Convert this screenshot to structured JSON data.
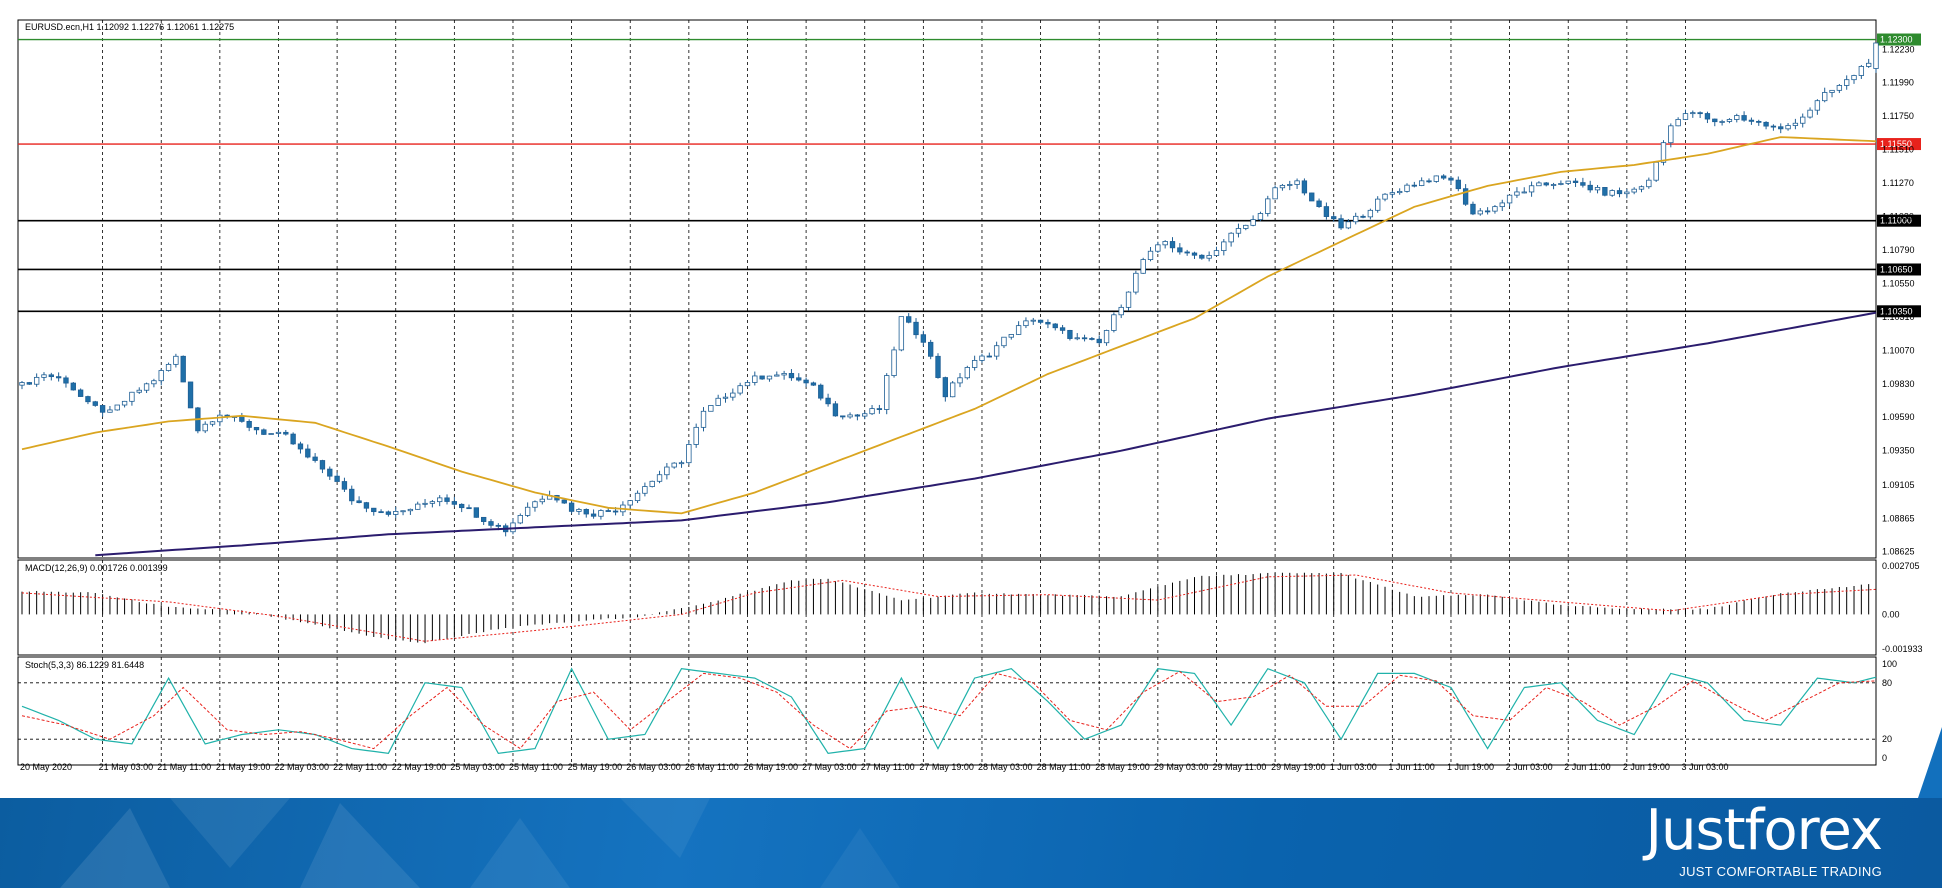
{
  "header": {
    "main": "EURUSD.ecn,H1  1.12092 1.12276 1.12061 1.12275",
    "macd": "MACD(12,26,9) 0.001726 0.001399",
    "stoch": "Stoch(5,3,3) 86.1229 81.6448"
  },
  "branding": {
    "logo": "Justforex",
    "tagline": "JUST COMFORTABLE TRADING"
  },
  "colors": {
    "bull_body": "#ffffff",
    "bear_body": "#1f6fa8",
    "candle_outline": "#1f5f95",
    "ma_fast": "#daa520",
    "ma_slow": "#2b1c6e",
    "level_green": "#2e8b2e",
    "level_red": "#e8221c",
    "level_black": "#000000",
    "stoch_main": "#20b2aa",
    "stoch_signal": "#e8221c",
    "macd_signal": "#e8221c"
  },
  "chart_data": [
    {
      "type": "candlestick",
      "symbol": "EURUSD.ecn",
      "timeframe": "H1",
      "last_ohlc": {
        "open": 1.12092,
        "high": 1.12276,
        "low": 1.12061,
        "close": 1.12275
      },
      "ylim": [
        1.0858,
        1.1244
      ],
      "y_ticks": [
        "1.12230",
        "1.11990",
        "1.11750",
        "1.11510",
        "1.11270",
        "1.11030",
        "1.10790",
        "1.10550",
        "1.10310",
        "1.10070",
        "1.09830",
        "1.09590",
        "1.09350",
        "1.09105",
        "1.08865",
        "1.08625"
      ],
      "x_ticks": [
        "20 May 2020",
        "21 May 03:00",
        "21 May 11:00",
        "21 May 19:00",
        "22 May 03:00",
        "22 May 11:00",
        "22 May 19:00",
        "25 May 03:00",
        "25 May 11:00",
        "25 May 19:00",
        "26 May 03:00",
        "26 May 11:00",
        "26 May 19:00",
        "27 May 03:00",
        "27 May 11:00",
        "27 May 19:00",
        "28 May 03:00",
        "28 May 11:00",
        "28 May 19:00",
        "29 May 03:00",
        "29 May 11:00",
        "29 May 19:00",
        "1 Jun 03:00",
        "1 Jun 11:00",
        "1 Jun 19:00",
        "2 Jun 03:00",
        "2 Jun 11:00",
        "2 Jun 19:00",
        "3 Jun 03:00"
      ],
      "levels": [
        {
          "price": 1.123,
          "label": "1.12300",
          "color": "green"
        },
        {
          "price": 1.1155,
          "label": "1.11550",
          "color": "red"
        },
        {
          "price": 1.11,
          "label": "1.11000",
          "color": "black"
        },
        {
          "price": 1.1065,
          "label": "1.10650",
          "color": "black"
        },
        {
          "price": 1.1035,
          "label": "1.10350",
          "color": "black"
        }
      ],
      "close_anchors": [
        [
          0,
          1.0982
        ],
        [
          3,
          1.099
        ],
        [
          6,
          1.0985
        ],
        [
          9,
          1.0968
        ],
        [
          12,
          1.0962
        ],
        [
          15,
          1.0975
        ],
        [
          18,
          1.0986
        ],
        [
          21,
          1.1002
        ],
        [
          24,
          1.095
        ],
        [
          27,
          1.0962
        ],
        [
          30,
          1.0955
        ],
        [
          33,
          1.0948
        ],
        [
          36,
          1.0945
        ],
        [
          39,
          1.093
        ],
        [
          42,
          1.0918
        ],
        [
          45,
          1.09
        ],
        [
          48,
          1.0893
        ],
        [
          51,
          1.089
        ],
        [
          54,
          1.0895
        ],
        [
          57,
          1.0902
        ],
        [
          60,
          1.0896
        ],
        [
          63,
          1.0886
        ],
        [
          66,
          1.0878
        ],
        [
          69,
          1.0895
        ],
        [
          72,
          1.0905
        ],
        [
          75,
          1.0893
        ],
        [
          78,
          1.089
        ],
        [
          81,
          1.0893
        ],
        [
          84,
          1.0905
        ],
        [
          87,
          1.0918
        ],
        [
          90,
          1.0928
        ],
        [
          93,
          1.0962
        ],
        [
          96,
          1.0975
        ],
        [
          99,
          1.0985
        ],
        [
          102,
          1.099
        ],
        [
          105,
          1.0988
        ],
        [
          108,
          1.098
        ],
        [
          111,
          1.0962
        ],
        [
          114,
          1.096
        ],
        [
          117,
          1.0965
        ],
        [
          120,
          1.103
        ],
        [
          123,
          1.1015
        ],
        [
          126,
          1.0975
        ],
        [
          129,
          1.0995
        ],
        [
          132,
          1.1005
        ],
        [
          135,
          1.102
        ],
        [
          138,
          1.103
        ],
        [
          141,
          1.1022
        ],
        [
          144,
          1.1015
        ],
        [
          147,
          1.1012
        ],
        [
          150,
          1.104
        ],
        [
          153,
          1.1072
        ],
        [
          156,
          1.1085
        ],
        [
          159,
          1.1075
        ],
        [
          162,
          1.1075
        ],
        [
          165,
          1.109
        ],
        [
          168,
          1.11
        ],
        [
          171,
          1.1122
        ],
        [
          174,
          1.1128
        ],
        [
          177,
          1.1108
        ],
        [
          180,
          1.1095
        ],
        [
          183,
          1.1105
        ],
        [
          186,
          1.1118
        ],
        [
          189,
          1.1125
        ],
        [
          192,
          1.113
        ],
        [
          195,
          1.113
        ],
        [
          198,
          1.1105
        ],
        [
          201,
          1.111
        ],
        [
          204,
          1.112
        ],
        [
          207,
          1.1125
        ],
        [
          210,
          1.1128
        ],
        [
          213,
          1.1125
        ],
        [
          216,
          1.112
        ],
        [
          219,
          1.112
        ],
        [
          222,
          1.1128
        ],
        [
          225,
          1.117
        ],
        [
          228,
          1.1178
        ],
        [
          231,
          1.117
        ],
        [
          234,
          1.1175
        ],
        [
          237,
          1.117
        ],
        [
          240,
          1.1165
        ],
        [
          243,
          1.1175
        ],
        [
          246,
          1.119
        ],
        [
          249,
          1.12
        ],
        [
          252,
          1.1215
        ],
        [
          253,
          1.12275
        ]
      ],
      "ma_fast_anchors": [
        [
          0,
          1.0936
        ],
        [
          10,
          1.0948
        ],
        [
          20,
          1.0956
        ],
        [
          30,
          1.096
        ],
        [
          40,
          1.0955
        ],
        [
          50,
          1.0938
        ],
        [
          60,
          1.092
        ],
        [
          70,
          1.0905
        ],
        [
          80,
          1.0894
        ],
        [
          90,
          1.089
        ],
        [
          100,
          1.0905
        ],
        [
          110,
          1.0925
        ],
        [
          120,
          1.0945
        ],
        [
          130,
          1.0965
        ],
        [
          140,
          1.099
        ],
        [
          150,
          1.101
        ],
        [
          160,
          1.103
        ],
        [
          170,
          1.106
        ],
        [
          180,
          1.1085
        ],
        [
          190,
          1.111
        ],
        [
          200,
          1.1125
        ],
        [
          210,
          1.1135
        ],
        [
          220,
          1.114
        ],
        [
          230,
          1.1148
        ],
        [
          240,
          1.116
        ],
        [
          253,
          1.1157
        ]
      ],
      "ma_slow_anchors": [
        [
          10,
          1.086
        ],
        [
          30,
          1.0867
        ],
        [
          50,
          1.0875
        ],
        [
          70,
          1.088
        ],
        [
          90,
          1.0885
        ],
        [
          110,
          1.0898
        ],
        [
          130,
          1.0915
        ],
        [
          150,
          1.0935
        ],
        [
          170,
          1.0958
        ],
        [
          190,
          1.0975
        ],
        [
          210,
          1.0995
        ],
        [
          230,
          1.1012
        ],
        [
          253,
          1.1034
        ]
      ]
    },
    {
      "type": "histogram",
      "name": "MACD(12,26,9)",
      "values_shown": {
        "main": 0.001726,
        "signal": 0.001399
      },
      "ylim": [
        -0.001933,
        0.002705
      ],
      "y_ticks": [
        "0.002705",
        "0.00",
        "-0.001933"
      ],
      "main_anchors": [
        [
          0,
          0.0013
        ],
        [
          10,
          0.0012
        ],
        [
          20,
          0.0004
        ],
        [
          30,
          0.0002
        ],
        [
          40,
          -0.0006
        ],
        [
          50,
          -0.0014
        ],
        [
          55,
          -0.0016
        ],
        [
          65,
          -0.0008
        ],
        [
          75,
          -0.0004
        ],
        [
          85,
          -0.0001
        ],
        [
          95,
          0.0008
        ],
        [
          105,
          0.0019
        ],
        [
          110,
          0.002
        ],
        [
          120,
          0.0008
        ],
        [
          130,
          0.0012
        ],
        [
          140,
          0.0011
        ],
        [
          150,
          0.001
        ],
        [
          160,
          0.0021
        ],
        [
          170,
          0.0023
        ],
        [
          180,
          0.0023
        ],
        [
          190,
          0.001
        ],
        [
          200,
          0.0011
        ],
        [
          210,
          0.0005
        ],
        [
          220,
          0.0003
        ],
        [
          230,
          0.0003
        ],
        [
          240,
          0.0012
        ],
        [
          253,
          0.0017
        ]
      ],
      "signal_anchors": [
        [
          0,
          0.0012
        ],
        [
          20,
          0.0007
        ],
        [
          35,
          -0.0001
        ],
        [
          55,
          -0.0015
        ],
        [
          70,
          -0.0009
        ],
        [
          90,
          0.0
        ],
        [
          100,
          0.0012
        ],
        [
          112,
          0.0019
        ],
        [
          125,
          0.001
        ],
        [
          140,
          0.0011
        ],
        [
          155,
          0.0008
        ],
        [
          170,
          0.0021
        ],
        [
          182,
          0.0022
        ],
        [
          195,
          0.0012
        ],
        [
          210,
          0.0007
        ],
        [
          225,
          0.0002
        ],
        [
          240,
          0.0011
        ],
        [
          253,
          0.0014
        ]
      ]
    },
    {
      "type": "line",
      "name": "Stoch(5,3,3)",
      "values_shown": {
        "main": 86.1229,
        "signal": 81.6448
      },
      "ylim": [
        0,
        100
      ],
      "y_ticks": [
        "100",
        "80",
        "20",
        "0"
      ],
      "levels": [
        80,
        20
      ],
      "main_anchors": [
        [
          0,
          55
        ],
        [
          5,
          40
        ],
        [
          10,
          20
        ],
        [
          15,
          15
        ],
        [
          20,
          85
        ],
        [
          25,
          15
        ],
        [
          30,
          25
        ],
        [
          35,
          30
        ],
        [
          40,
          25
        ],
        [
          45,
          10
        ],
        [
          50,
          5
        ],
        [
          55,
          80
        ],
        [
          60,
          75
        ],
        [
          65,
          5
        ],
        [
          70,
          10
        ],
        [
          75,
          95
        ],
        [
          80,
          20
        ],
        [
          85,
          25
        ],
        [
          90,
          95
        ],
        [
          95,
          90
        ],
        [
          100,
          85
        ],
        [
          105,
          65
        ],
        [
          110,
          5
        ],
        [
          115,
          10
        ],
        [
          120,
          85
        ],
        [
          125,
          10
        ],
        [
          130,
          85
        ],
        [
          135,
          95
        ],
        [
          140,
          60
        ],
        [
          145,
          20
        ],
        [
          150,
          35
        ],
        [
          155,
          95
        ],
        [
          160,
          90
        ],
        [
          165,
          35
        ],
        [
          170,
          95
        ],
        [
          175,
          80
        ],
        [
          180,
          20
        ],
        [
          185,
          90
        ],
        [
          190,
          90
        ],
        [
          195,
          75
        ],
        [
          200,
          10
        ],
        [
          205,
          75
        ],
        [
          210,
          80
        ],
        [
          215,
          40
        ],
        [
          220,
          25
        ],
        [
          225,
          90
        ],
        [
          230,
          80
        ],
        [
          235,
          40
        ],
        [
          240,
          35
        ],
        [
          245,
          85
        ],
        [
          250,
          80
        ],
        [
          253,
          86
        ]
      ],
      "signal_anchors": [
        [
          0,
          45
        ],
        [
          6,
          35
        ],
        [
          12,
          20
        ],
        [
          18,
          45
        ],
        [
          22,
          75
        ],
        [
          28,
          30
        ],
        [
          33,
          25
        ],
        [
          38,
          28
        ],
        [
          43,
          20
        ],
        [
          48,
          10
        ],
        [
          53,
          45
        ],
        [
          58,
          75
        ],
        [
          63,
          35
        ],
        [
          68,
          10
        ],
        [
          73,
          60
        ],
        [
          78,
          70
        ],
        [
          83,
          30
        ],
        [
          88,
          60
        ],
        [
          93,
          90
        ],
        [
          98,
          85
        ],
        [
          103,
          70
        ],
        [
          108,
          35
        ],
        [
          113,
          10
        ],
        [
          118,
          50
        ],
        [
          123,
          55
        ],
        [
          128,
          45
        ],
        [
          133,
          90
        ],
        [
          138,
          80
        ],
        [
          143,
          40
        ],
        [
          148,
          30
        ],
        [
          153,
          70
        ],
        [
          158,
          92
        ],
        [
          163,
          60
        ],
        [
          168,
          65
        ],
        [
          173,
          88
        ],
        [
          178,
          55
        ],
        [
          183,
          55
        ],
        [
          188,
          88
        ],
        [
          193,
          82
        ],
        [
          198,
          45
        ],
        [
          203,
          40
        ],
        [
          208,
          75
        ],
        [
          213,
          60
        ],
        [
          218,
          35
        ],
        [
          223,
          55
        ],
        [
          228,
          82
        ],
        [
          233,
          60
        ],
        [
          238,
          40
        ],
        [
          243,
          60
        ],
        [
          248,
          80
        ],
        [
          253,
          82
        ]
      ]
    }
  ]
}
